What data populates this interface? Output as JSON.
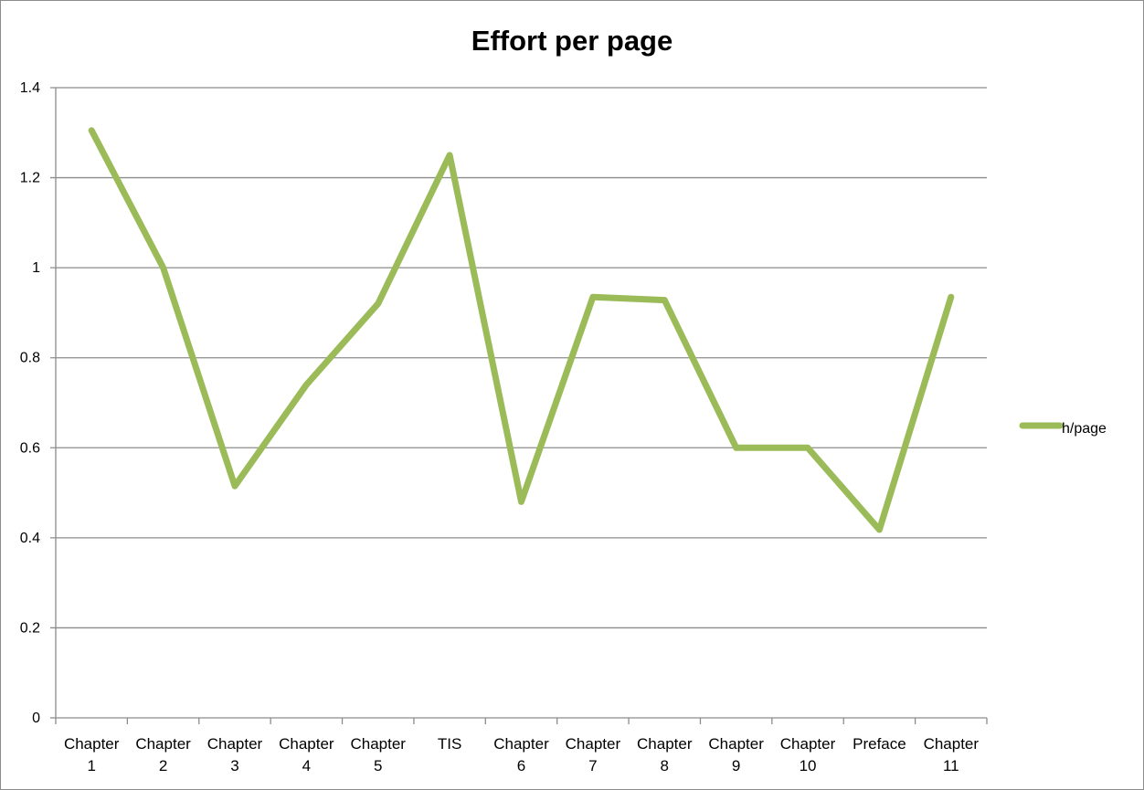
{
  "chart_data": {
    "type": "line",
    "title": "Effort per page",
    "xlabel": "",
    "ylabel": "",
    "categories": [
      [
        "Chapter",
        "1"
      ],
      [
        "Chapter",
        "2"
      ],
      [
        "Chapter",
        "3"
      ],
      [
        "Chapter",
        "4"
      ],
      [
        "Chapter",
        "5"
      ],
      [
        "TIS"
      ],
      [
        "Chapter",
        "6"
      ],
      [
        "Chapter",
        "7"
      ],
      [
        "Chapter",
        "8"
      ],
      [
        "Chapter",
        "9"
      ],
      [
        "Chapter",
        "10"
      ],
      [
        "Preface"
      ],
      [
        "Chapter",
        "11"
      ]
    ],
    "series": [
      {
        "name": "h/page",
        "color": "#9bbb59",
        "values": [
          1.305,
          1.0,
          0.515,
          0.74,
          0.92,
          1.25,
          0.48,
          0.935,
          0.928,
          0.6,
          0.6,
          0.418,
          0.935
        ]
      }
    ],
    "ylim": [
      0,
      1.4
    ],
    "yticks": [
      "0",
      "0.2",
      "0.4",
      "0.6",
      "0.8",
      "1",
      "1.2",
      "1.4"
    ],
    "grid": true,
    "legend_position": "right"
  }
}
